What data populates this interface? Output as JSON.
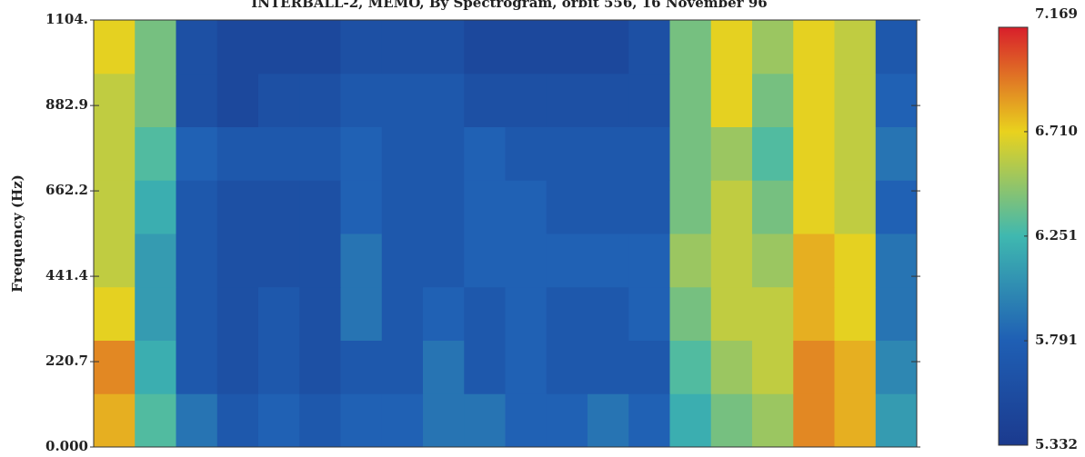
{
  "chart_data": {
    "type": "heatmap",
    "title": "INTERBALL-2, MEMO, By Spectrogram, orbit 556, 16 November 96",
    "ylabel": "Frequency (Hz)",
    "ylim": [
      0,
      1104
    ],
    "yticks": [
      {
        "value": 1104,
        "label": "1104."
      },
      882.9,
      662.2,
      441.4,
      220.7,
      {
        "value": 0,
        "label": "0.000"
      }
    ],
    "clim": [
      5.332,
      7.169
    ],
    "cticks": [
      7.169,
      {
        "value": 6.71,
        "label": "6.710"
      },
      6.251,
      5.791,
      5.332
    ],
    "colorscale": [
      "#1b3a8e",
      "#1f5fb4",
      "#3fb8b0",
      "#e9d21e",
      "#d81f2b"
    ],
    "z": [
      [
        6.8,
        6.3,
        5.9,
        5.7,
        5.8,
        5.7,
        5.8,
        5.8,
        5.9,
        5.9,
        5.8,
        5.8,
        5.9,
        5.8,
        6.2,
        6.4,
        6.5,
        6.9,
        6.8,
        6.1
      ],
      [
        6.9,
        6.2,
        5.7,
        5.6,
        5.7,
        5.6,
        5.7,
        5.7,
        5.9,
        5.7,
        5.8,
        5.7,
        5.7,
        5.7,
        6.3,
        6.5,
        6.6,
        6.9,
        6.8,
        6.0
      ],
      [
        6.7,
        6.1,
        5.7,
        5.6,
        5.7,
        5.6,
        5.9,
        5.7,
        5.8,
        5.7,
        5.8,
        5.7,
        5.7,
        5.8,
        6.4,
        6.6,
        6.6,
        6.8,
        6.7,
        5.9
      ],
      [
        6.6,
        6.1,
        5.7,
        5.6,
        5.6,
        5.6,
        5.9,
        5.7,
        5.7,
        5.8,
        5.8,
        5.8,
        5.8,
        5.8,
        6.5,
        6.6,
        6.5,
        6.8,
        6.7,
        5.9
      ],
      [
        6.6,
        6.2,
        5.7,
        5.6,
        5.6,
        5.6,
        5.8,
        5.7,
        5.7,
        5.8,
        5.8,
        5.7,
        5.7,
        5.7,
        6.4,
        6.6,
        6.4,
        6.7,
        6.6,
        5.8
      ],
      [
        6.6,
        6.3,
        5.8,
        5.7,
        5.7,
        5.7,
        5.8,
        5.7,
        5.7,
        5.8,
        5.7,
        5.7,
        5.7,
        5.7,
        6.4,
        6.5,
        6.3,
        6.7,
        6.6,
        5.9
      ],
      [
        6.6,
        6.4,
        5.6,
        5.5,
        5.6,
        5.6,
        5.7,
        5.7,
        5.7,
        5.6,
        5.6,
        5.6,
        5.6,
        5.6,
        6.4,
        6.7,
        6.4,
        6.7,
        6.6,
        5.8
      ],
      [
        6.7,
        6.4,
        5.6,
        5.5,
        5.5,
        5.5,
        5.6,
        5.6,
        5.6,
        5.5,
        5.5,
        5.5,
        5.5,
        5.6,
        6.4,
        6.7,
        6.5,
        6.7,
        6.6,
        5.7
      ]
    ]
  }
}
